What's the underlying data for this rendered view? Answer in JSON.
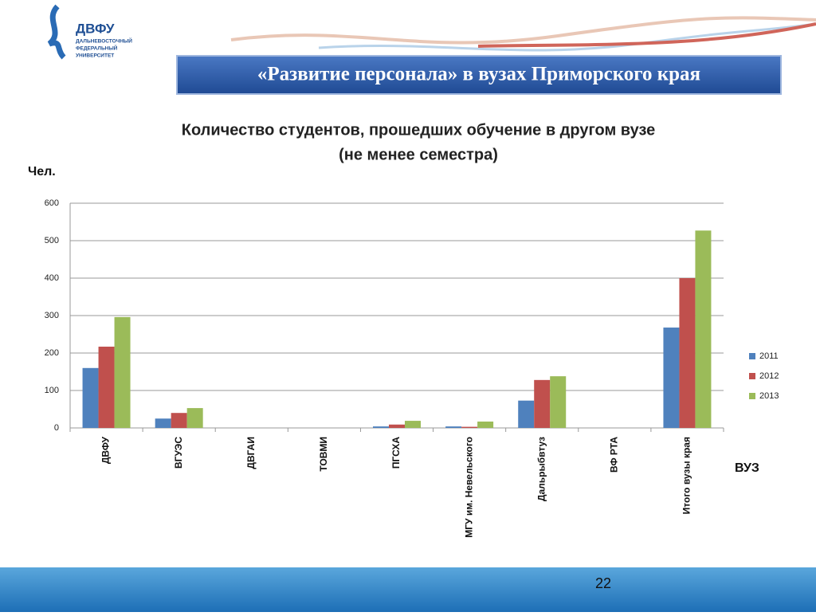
{
  "logo": {
    "name": "ДВФУ",
    "lines": [
      "ДАЛЬНЕВОСТОЧНЫЙ",
      "ФЕДЕРАЛЬНЫЙ",
      "УНИВЕРСИТЕТ"
    ]
  },
  "header": {
    "title": "«Развитие персонала» в вузах Приморского края"
  },
  "footer": {
    "page": 22
  },
  "chart_data": {
    "type": "bar",
    "title": "Количество студентов, прошедших обучение в другом вузе",
    "subtitle": "(не менее семестра)",
    "y_label": "Чел.",
    "x_label": "ВУЗ",
    "categories": [
      "ДВФУ",
      "ВГУЭС",
      "ДВГАИ",
      "ТОВМИ",
      "ПГСХА",
      "МГУ им. Невельского",
      "Дальрыбвтуз",
      "ВФ РТА",
      "Итого вузы края"
    ],
    "series": [
      {
        "name": "2011",
        "color": "#4f81bd",
        "values": [
          160,
          25,
          0,
          0,
          4,
          4,
          73,
          0,
          268
        ]
      },
      {
        "name": "2012",
        "color": "#c0504d",
        "values": [
          217,
          40,
          0,
          0,
          9,
          3,
          128,
          0,
          400
        ]
      },
      {
        "name": "2013",
        "color": "#9bbb59",
        "values": [
          296,
          53,
          0,
          0,
          19,
          17,
          138,
          0,
          527
        ]
      }
    ],
    "ylim": [
      0,
      600
    ],
    "yticks": [
      0,
      100,
      200,
      300,
      400,
      500,
      600
    ],
    "grid": true,
    "legend": "right"
  }
}
